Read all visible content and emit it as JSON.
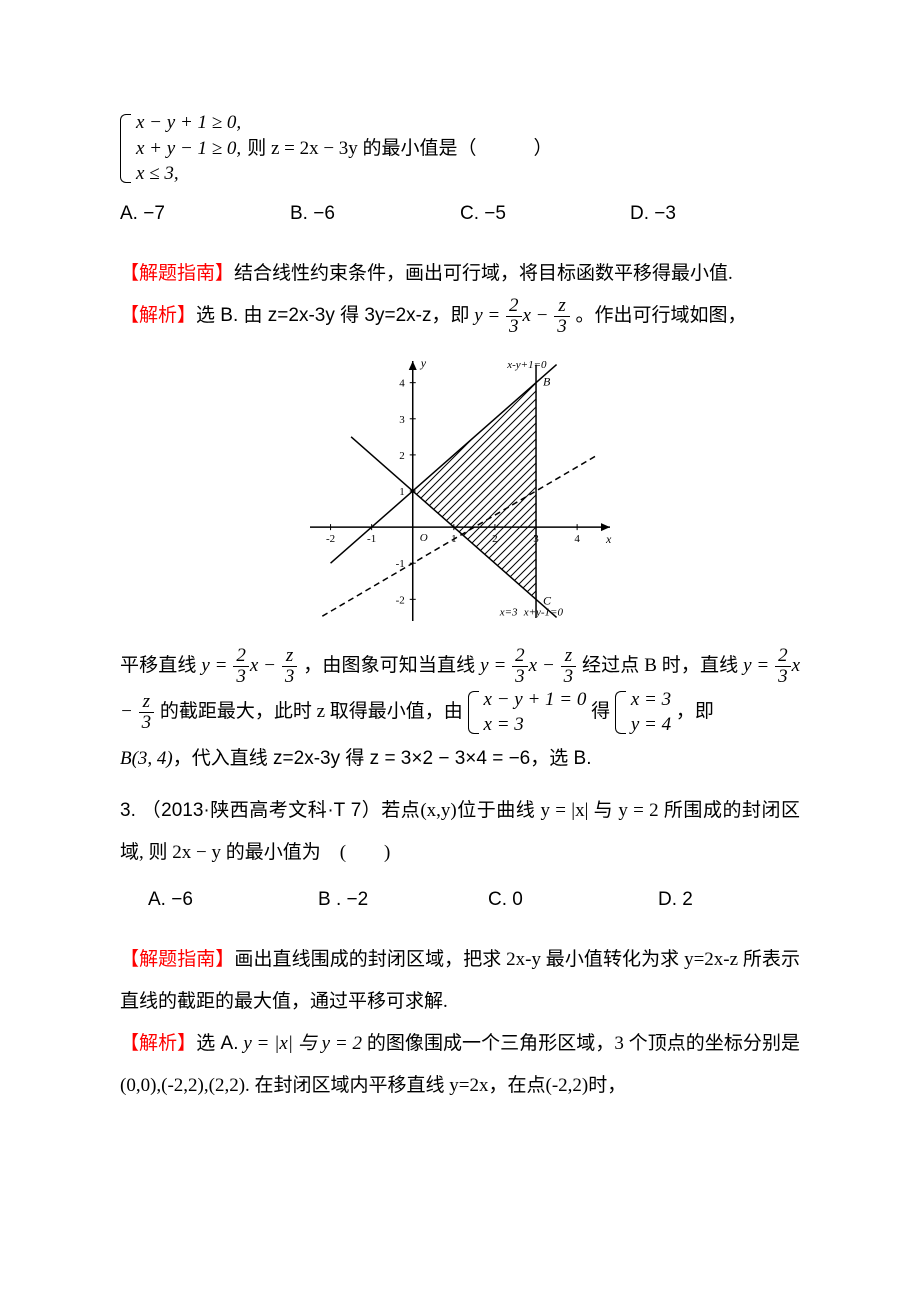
{
  "constraints": {
    "line1": "x − y + 1 ≥ 0,",
    "line2": "x + y − 1 ≥ 0,",
    "line3": "x ≤ 3,",
    "tail": "则 z = 2x − 3y 的最小值是（　　　）"
  },
  "opts1": {
    "A": "A. −7",
    "B": "B. −6",
    "C": "C. −5",
    "D": "D. −3"
  },
  "hint1_tag": "【解题指南】",
  "hint1_text": "结合线性约束条件，画出可行域，将目标函数平移得最小值.",
  "ana1_tag": "【解析】",
  "ana1_text_a": "选 B. 由 z=2x-3y 得 3y=2x-z，即",
  "ana1_eq_lead": "y =",
  "ana1_eq_mid": "x −",
  "ana1_text_b": "。作出可行域如图，",
  "chart": {
    "type": "line",
    "background_color": "#ffffff",
    "axis_color": "#000000",
    "grid": false,
    "x_ticks": [
      -2,
      -1,
      0,
      1,
      2,
      3,
      4
    ],
    "y_ticks": [
      -2,
      -1,
      0,
      1,
      2,
      3,
      4
    ],
    "xlim": [
      -2.5,
      4.8
    ],
    "ylim": [
      -2.6,
      4.6
    ],
    "label_fontsize": 11,
    "lines": [
      {
        "label": "x-y+1=0",
        "color": "#000000",
        "width": 1.5,
        "p1": [
          -2,
          -1
        ],
        "p2": [
          3.5,
          4.5
        ]
      },
      {
        "label": "x+y-1=0",
        "color": "#000000",
        "width": 1.5,
        "p1": [
          -1.5,
          2.5
        ],
        "p2": [
          3.5,
          -2.5
        ]
      },
      {
        "label": "x=3",
        "color": "#000000",
        "width": 1.5,
        "p1": [
          3,
          -2.5
        ],
        "p2": [
          3,
          4.5
        ]
      }
    ],
    "obj_line": {
      "slope": 0.6667,
      "intercept": -1,
      "dash": "6,4",
      "color": "#000000",
      "width": 1.5
    },
    "region_fill": "hatch",
    "hatch_color": "#000000",
    "vertices": {
      "B": [
        3,
        4
      ],
      "C": [
        3,
        -2
      ],
      "A": [
        0,
        1
      ]
    },
    "origin_label": "O",
    "axis_labels": {
      "x": "x",
      "y": "y"
    },
    "line_labels": {
      "x3": "x=3",
      "up": "x-y+1=0",
      "down": "x+y-1=0"
    }
  },
  "ana1_after_a": "平移直线",
  "ana1_after_b": "，由图象可知当直线",
  "ana1_after_c": "经过点 B 时，直线",
  "ana1_after_d": "的截距最大，此时 z 取得最小值，由",
  "sys_a": {
    "l1": "x − y + 1 = 0",
    "l2": "x = 3"
  },
  "gets": "得",
  "sys_b": {
    "l1": "x = 3",
    "l2": "y = 4"
  },
  "comma_ji": "，即",
  "pointB": "B(3, 4)",
  "ana1_final": "，代入直线 z=2x-3y 得 z = 3×2 − 3×4 = −6，选 B.",
  "q3_lead": "3. （2013·陕西高考文科·T 7）",
  "q3_text_a": "若点(x,y)位于曲线 y = |x| 与 y = 2 所围成的封闭区域, 则 2x − y 的最小值为　(　　)",
  "opts3": {
    "A": "A. −6",
    "B": "B . −2",
    "C": "C. 0",
    "D": "D. 2"
  },
  "hint3_tag": "【解题指南】",
  "hint3_text": "画出直线围成的封闭区域，把求 2x-y 最小值转化为求 y=2x-z 所表示直线的截距的最大值，通过平移可求解.",
  "ana3_tag": "【解析】",
  "ana3_text_a": "选 A.",
  "ana3_eq": "y = |x| 与 y = 2",
  "ana3_text_b": "的图像围成一个三角形区域，3 个顶点的坐标分别是 (0,0),(-2,2),(2,2). 在封闭区域内平移直线 y=2x，在点(-2,2)时，",
  "colors": {
    "text": "#000000",
    "red": "#ff0000",
    "blue": "#0000ff",
    "bg": "#ffffff"
  }
}
